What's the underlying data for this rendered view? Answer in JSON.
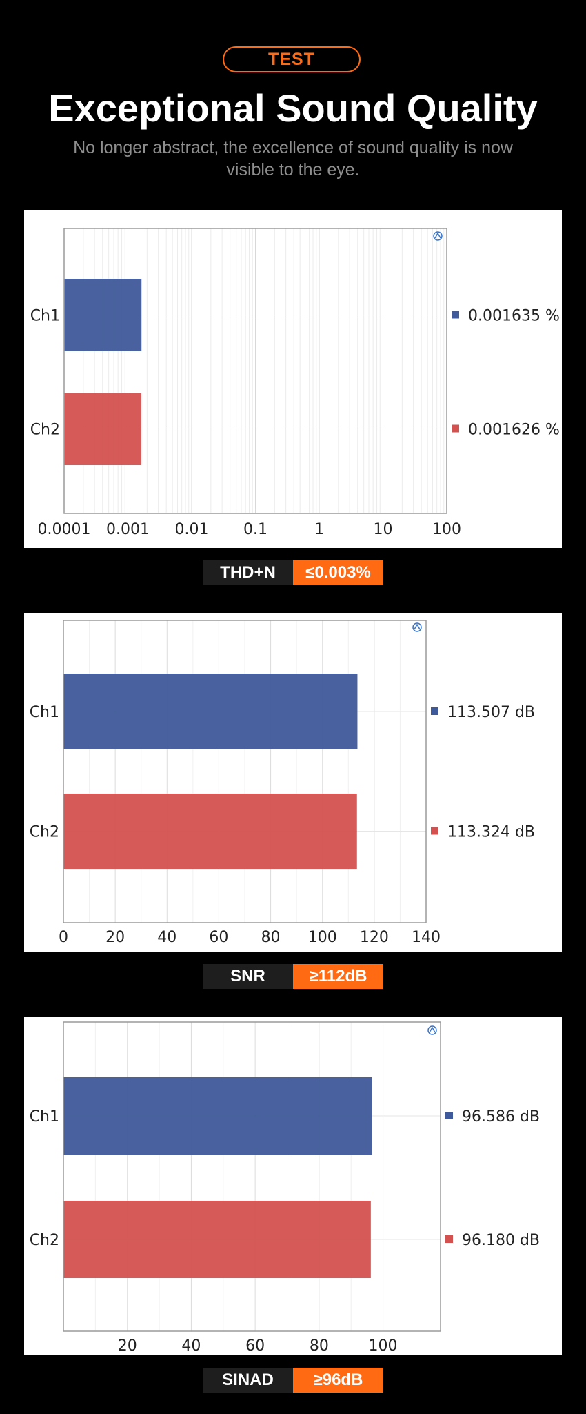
{
  "header": {
    "badge": "TEST",
    "title": "Exceptional Sound Quality",
    "subtitle": "No longer abstract, the excellence of sound quality is now visible to the eye."
  },
  "colors": {
    "accent": "#ff6a13",
    "ch1": "#3f5a9a",
    "ch2": "#d3514f"
  },
  "chart_data": [
    {
      "type": "bar",
      "orientation": "horizontal",
      "xscale": "log",
      "categories": [
        "Ch1",
        "Ch2"
      ],
      "values": [
        0.001635,
        0.001626
      ],
      "value_labels": [
        "0.001635 %",
        "0.001626 %"
      ],
      "xlim": [
        0.0001,
        100
      ],
      "xticks": [
        "0.0001",
        "0.001",
        "0.01",
        "0.1",
        "1",
        "10",
        "100"
      ],
      "grid": true,
      "spec_label": "THD+N",
      "spec_value": "≤0.003%"
    },
    {
      "type": "bar",
      "orientation": "horizontal",
      "xscale": "linear",
      "categories": [
        "Ch1",
        "Ch2"
      ],
      "values": [
        113.507,
        113.324
      ],
      "value_labels": [
        "113.507 dB",
        "113.324 dB"
      ],
      "xlim": [
        0,
        140
      ],
      "xticks": [
        "0",
        "20",
        "40",
        "60",
        "80",
        "100",
        "120",
        "140"
      ],
      "grid": true,
      "spec_label": "SNR",
      "spec_value": "≥112dB"
    },
    {
      "type": "bar",
      "orientation": "horizontal",
      "xscale": "linear",
      "categories": [
        "Ch1",
        "Ch2"
      ],
      "values": [
        96.586,
        96.18
      ],
      "value_labels": [
        "96.586 dB",
        "96.180 dB"
      ],
      "xlim": [
        0,
        118
      ],
      "xticks": [
        "20",
        "40",
        "60",
        "80",
        "100"
      ],
      "grid": true,
      "spec_label": "SINAD",
      "spec_value": "≥96dB"
    }
  ]
}
